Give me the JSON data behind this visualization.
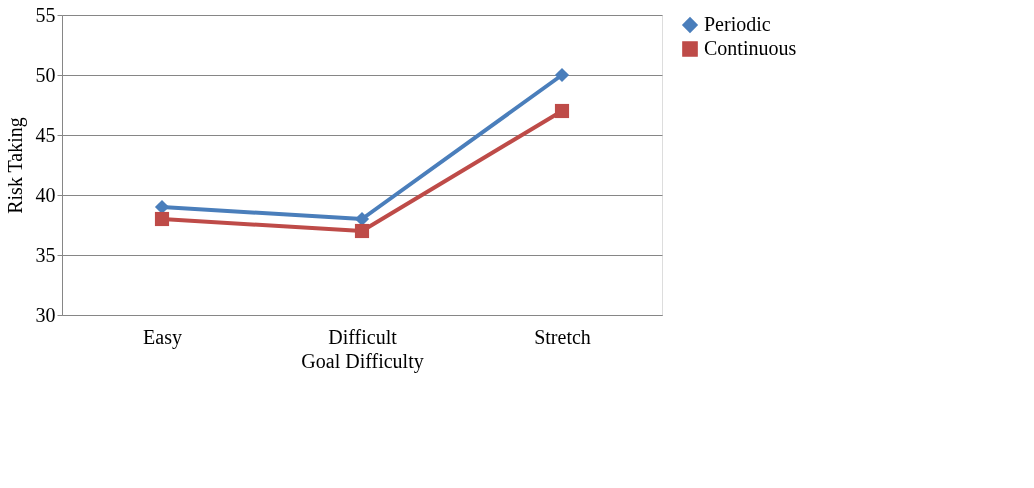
{
  "chart_data": {
    "type": "line",
    "xlabel": "Goal Difficulty",
    "ylabel": "Risk Taking",
    "categories": [
      "Easy",
      "Difficult",
      "Stretch"
    ],
    "series": [
      {
        "name": "Periodic",
        "color": "#4a7ebb",
        "values": [
          39,
          38,
          50
        ],
        "marker": "diamond"
      },
      {
        "name": "Continuous",
        "color": "#be4b48",
        "values": [
          38,
          37,
          47
        ],
        "marker": "square"
      }
    ],
    "ylim": [
      30,
      55
    ],
    "yticks": [
      30,
      35,
      40,
      45,
      50,
      55
    ],
    "grid": "y",
    "legend": "right",
    "line_style": "solid"
  }
}
